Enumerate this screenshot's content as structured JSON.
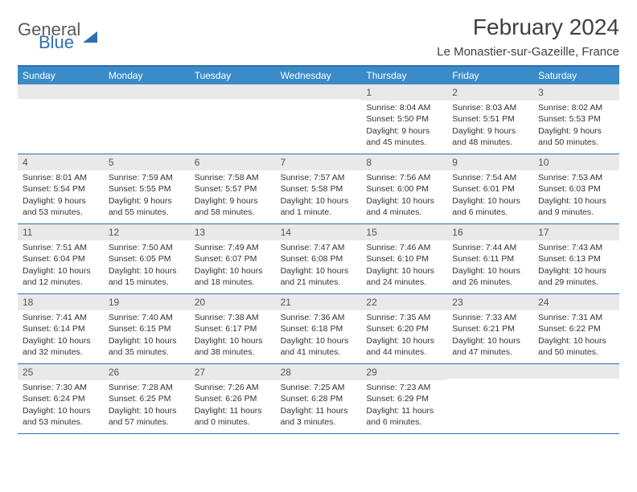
{
  "brand": {
    "part1": "General",
    "part2": "Blue"
  },
  "title": "February 2024",
  "location": "Le Monastier-sur-Gazeille, France",
  "colors": {
    "accent": "#2f6fb0",
    "header_bg": "#3b8bc9",
    "daynum_bg": "#e9e9e9"
  },
  "dow": [
    "Sunday",
    "Monday",
    "Tuesday",
    "Wednesday",
    "Thursday",
    "Friday",
    "Saturday"
  ],
  "weeks": [
    [
      null,
      null,
      null,
      null,
      {
        "n": "1",
        "sr": "8:04 AM",
        "ss": "5:50 PM",
        "dl": "9 hours and 45 minutes."
      },
      {
        "n": "2",
        "sr": "8:03 AM",
        "ss": "5:51 PM",
        "dl": "9 hours and 48 minutes."
      },
      {
        "n": "3",
        "sr": "8:02 AM",
        "ss": "5:53 PM",
        "dl": "9 hours and 50 minutes."
      }
    ],
    [
      {
        "n": "4",
        "sr": "8:01 AM",
        "ss": "5:54 PM",
        "dl": "9 hours and 53 minutes."
      },
      {
        "n": "5",
        "sr": "7:59 AM",
        "ss": "5:55 PM",
        "dl": "9 hours and 55 minutes."
      },
      {
        "n": "6",
        "sr": "7:58 AM",
        "ss": "5:57 PM",
        "dl": "9 hours and 58 minutes."
      },
      {
        "n": "7",
        "sr": "7:57 AM",
        "ss": "5:58 PM",
        "dl": "10 hours and 1 minute."
      },
      {
        "n": "8",
        "sr": "7:56 AM",
        "ss": "6:00 PM",
        "dl": "10 hours and 4 minutes."
      },
      {
        "n": "9",
        "sr": "7:54 AM",
        "ss": "6:01 PM",
        "dl": "10 hours and 6 minutes."
      },
      {
        "n": "10",
        "sr": "7:53 AM",
        "ss": "6:03 PM",
        "dl": "10 hours and 9 minutes."
      }
    ],
    [
      {
        "n": "11",
        "sr": "7:51 AM",
        "ss": "6:04 PM",
        "dl": "10 hours and 12 minutes."
      },
      {
        "n": "12",
        "sr": "7:50 AM",
        "ss": "6:05 PM",
        "dl": "10 hours and 15 minutes."
      },
      {
        "n": "13",
        "sr": "7:49 AM",
        "ss": "6:07 PM",
        "dl": "10 hours and 18 minutes."
      },
      {
        "n": "14",
        "sr": "7:47 AM",
        "ss": "6:08 PM",
        "dl": "10 hours and 21 minutes."
      },
      {
        "n": "15",
        "sr": "7:46 AM",
        "ss": "6:10 PM",
        "dl": "10 hours and 24 minutes."
      },
      {
        "n": "16",
        "sr": "7:44 AM",
        "ss": "6:11 PM",
        "dl": "10 hours and 26 minutes."
      },
      {
        "n": "17",
        "sr": "7:43 AM",
        "ss": "6:13 PM",
        "dl": "10 hours and 29 minutes."
      }
    ],
    [
      {
        "n": "18",
        "sr": "7:41 AM",
        "ss": "6:14 PM",
        "dl": "10 hours and 32 minutes."
      },
      {
        "n": "19",
        "sr": "7:40 AM",
        "ss": "6:15 PM",
        "dl": "10 hours and 35 minutes."
      },
      {
        "n": "20",
        "sr": "7:38 AM",
        "ss": "6:17 PM",
        "dl": "10 hours and 38 minutes."
      },
      {
        "n": "21",
        "sr": "7:36 AM",
        "ss": "6:18 PM",
        "dl": "10 hours and 41 minutes."
      },
      {
        "n": "22",
        "sr": "7:35 AM",
        "ss": "6:20 PM",
        "dl": "10 hours and 44 minutes."
      },
      {
        "n": "23",
        "sr": "7:33 AM",
        "ss": "6:21 PM",
        "dl": "10 hours and 47 minutes."
      },
      {
        "n": "24",
        "sr": "7:31 AM",
        "ss": "6:22 PM",
        "dl": "10 hours and 50 minutes."
      }
    ],
    [
      {
        "n": "25",
        "sr": "7:30 AM",
        "ss": "6:24 PM",
        "dl": "10 hours and 53 minutes."
      },
      {
        "n": "26",
        "sr": "7:28 AM",
        "ss": "6:25 PM",
        "dl": "10 hours and 57 minutes."
      },
      {
        "n": "27",
        "sr": "7:26 AM",
        "ss": "6:26 PM",
        "dl": "11 hours and 0 minutes."
      },
      {
        "n": "28",
        "sr": "7:25 AM",
        "ss": "6:28 PM",
        "dl": "11 hours and 3 minutes."
      },
      {
        "n": "29",
        "sr": "7:23 AM",
        "ss": "6:29 PM",
        "dl": "11 hours and 6 minutes."
      },
      null,
      null
    ]
  ],
  "labels": {
    "sunrise": "Sunrise:",
    "sunset": "Sunset:",
    "daylight": "Daylight:"
  }
}
